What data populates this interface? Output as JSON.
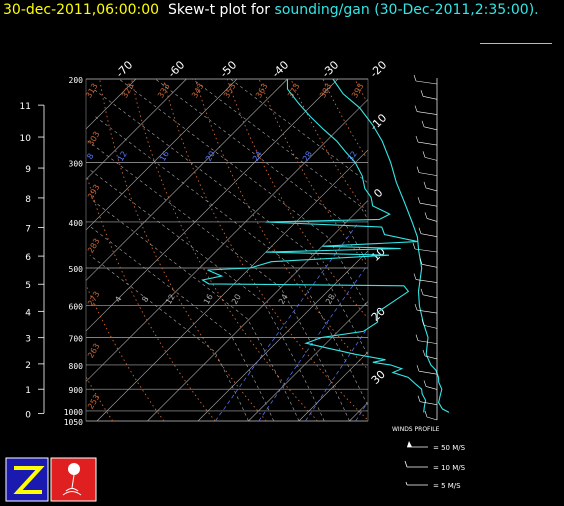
{
  "header": {
    "date_label": "30-dec-2011,06:00:00",
    "plot_label": "Skew-t plot for",
    "station_label": "sounding/gan",
    "launch_label": "(30-Dec-2011,2:35:00)."
  },
  "colors": {
    "date": "#ffff00",
    "station": "#33e6e6",
    "trace": "#33e6e6",
    "isotherm": "#aaaaaa",
    "isobar": "#aaaaaa",
    "dry_adiabat": "#cc6633",
    "moist_adiabat": "#aaaaaa",
    "mixing_ratio": "#5577ff"
  },
  "chart_data": {
    "type": "line",
    "subtype": "skew-t log-p",
    "pressure_levels": [
      1050,
      1000,
      900,
      800,
      700,
      600,
      500,
      400,
      300,
      200
    ],
    "height_km_ticks": [
      0,
      1,
      2,
      3,
      4,
      5,
      6,
      7,
      8,
      9,
      10,
      11
    ],
    "height_km_at_pressure": [
      {
        "km": 0,
        "p": 1012
      },
      {
        "km": 1,
        "p": 900
      },
      {
        "km": 2,
        "p": 796
      },
      {
        "km": 3,
        "p": 701
      },
      {
        "km": 4,
        "p": 617
      },
      {
        "km": 5,
        "p": 541
      },
      {
        "km": 6,
        "p": 472
      },
      {
        "km": 7,
        "p": 411
      },
      {
        "km": 8,
        "p": 356
      },
      {
        "km": 9,
        "p": 308
      },
      {
        "km": 10,
        "p": 265
      },
      {
        "km": 11,
        "p": 227
      }
    ],
    "temperature_labels_top": [
      "-70",
      "-60",
      "-50",
      "-40",
      "-30",
      "-20"
    ],
    "temperature_labels_right": [
      "-10",
      "0",
      "10",
      "20",
      "30"
    ],
    "dry_adiabat_labels": [
      "313",
      "323",
      "333",
      "343",
      "353",
      "363",
      "373",
      "383",
      "393",
      "303",
      "293",
      "283",
      "273",
      "263",
      "253"
    ],
    "mixing_ratio_labels": [
      "8",
      "12",
      "16",
      "20",
      "24",
      "28",
      "32"
    ],
    "moist_labels": [
      "4",
      "8",
      "12",
      "16",
      "20",
      "24",
      "28"
    ],
    "temperature_profile": [
      {
        "p": 1007,
        "t": 28
      },
      {
        "p": 990,
        "t": 26
      },
      {
        "p": 960,
        "t": 24
      },
      {
        "p": 930,
        "t": 23
      },
      {
        "p": 900,
        "t": 22
      },
      {
        "p": 870,
        "t": 20
      },
      {
        "p": 850,
        "t": 19
      },
      {
        "p": 820,
        "t": 17
      },
      {
        "p": 800,
        "t": 15
      },
      {
        "p": 760,
        "t": 12
      },
      {
        "p": 700,
        "t": 9
      },
      {
        "p": 650,
        "t": 5
      },
      {
        "p": 600,
        "t": 1
      },
      {
        "p": 560,
        "t": -2
      },
      {
        "p": 500,
        "t": -6
      },
      {
        "p": 460,
        "t": -10
      },
      {
        "p": 430,
        "t": -13
      },
      {
        "p": 400,
        "t": -17
      },
      {
        "p": 360,
        "t": -23
      },
      {
        "p": 330,
        "t": -28
      },
      {
        "p": 300,
        "t": -33
      },
      {
        "p": 270,
        "t": -39
      },
      {
        "p": 250,
        "t": -44
      },
      {
        "p": 230,
        "t": -50
      },
      {
        "p": 215,
        "t": -56
      },
      {
        "p": 200,
        "t": -61
      }
    ],
    "dewpoint_profile": [
      {
        "p": 1007,
        "t": 23
      },
      {
        "p": 980,
        "t": 22
      },
      {
        "p": 950,
        "t": 21
      },
      {
        "p": 920,
        "t": 19
      },
      {
        "p": 900,
        "t": 18
      },
      {
        "p": 880,
        "t": 16
      },
      {
        "p": 850,
        "t": 13
      },
      {
        "p": 830,
        "t": 9
      },
      {
        "p": 815,
        "t": 10
      },
      {
        "p": 800,
        "t": 7
      },
      {
        "p": 790,
        "t": 3
      },
      {
        "p": 780,
        "t": 5
      },
      {
        "p": 760,
        "t": -2
      },
      {
        "p": 740,
        "t": -8
      },
      {
        "p": 720,
        "t": -14
      },
      {
        "p": 700,
        "t": -12
      },
      {
        "p": 680,
        "t": -5
      },
      {
        "p": 650,
        "t": -4
      },
      {
        "p": 620,
        "t": -6
      },
      {
        "p": 590,
        "t": -5
      },
      {
        "p": 560,
        "t": -4
      },
      {
        "p": 545,
        "t": -6
      },
      {
        "p": 540,
        "t": -45
      },
      {
        "p": 530,
        "t": -47
      },
      {
        "p": 520,
        "t": -44
      },
      {
        "p": 505,
        "t": -48
      },
      {
        "p": 500,
        "t": -40
      },
      {
        "p": 485,
        "t": -37
      },
      {
        "p": 470,
        "t": -15
      },
      {
        "p": 463,
        "t": -40
      },
      {
        "p": 455,
        "t": -14
      },
      {
        "p": 450,
        "t": -30
      },
      {
        "p": 440,
        "t": -12
      },
      {
        "p": 425,
        "t": -20
      },
      {
        "p": 410,
        "t": -22
      },
      {
        "p": 400,
        "t": -46
      },
      {
        "p": 395,
        "t": -24
      },
      {
        "p": 385,
        "t": -23
      },
      {
        "p": 370,
        "t": -28
      },
      {
        "p": 355,
        "t": -30
      },
      {
        "p": 340,
        "t": -33
      },
      {
        "p": 320,
        "t": -36
      },
      {
        "p": 300,
        "t": -40
      },
      {
        "p": 285,
        "t": -44
      },
      {
        "p": 270,
        "t": -48
      },
      {
        "p": 255,
        "t": -53
      },
      {
        "p": 240,
        "t": -58
      },
      {
        "p": 225,
        "t": -63
      },
      {
        "p": 210,
        "t": -68
      },
      {
        "p": 200,
        "t": -70
      }
    ],
    "wind_profile_heights_km": [
      0,
      0.5,
      1,
      1.5,
      2,
      2.5,
      3,
      3.5,
      4,
      4.5,
      5,
      5.5,
      6,
      6.5,
      7,
      7.5,
      8,
      8.5,
      9,
      9.5,
      10,
      10.5,
      11
    ],
    "grid": true
  },
  "winds_legend": {
    "title": "WINDS PROFILE",
    "items": [
      "= 50 M/S",
      "= 10 M/S",
      "= 5 M/S"
    ]
  },
  "logos": [
    "z-logo",
    "balloon-logo"
  ]
}
